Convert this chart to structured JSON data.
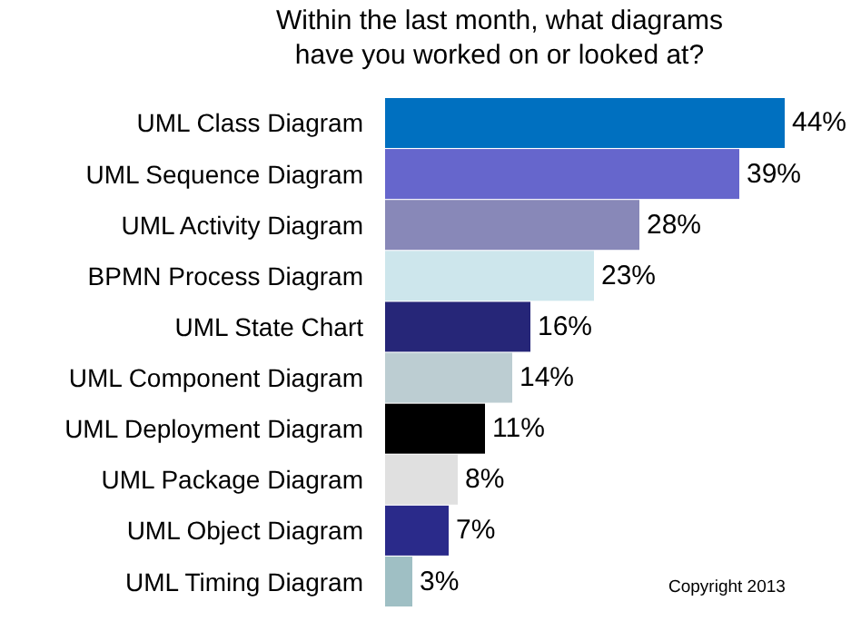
{
  "chart_data": {
    "type": "bar",
    "orientation": "horizontal",
    "title": "Within the last month, what diagrams have you worked on or looked at?",
    "categories": [
      "UML Class Diagram",
      "UML Sequence Diagram",
      "UML Activity Diagram",
      "BPMN Process Diagram",
      "UML State Chart",
      "UML Component Diagram",
      "UML Deployment Diagram",
      "UML Package Diagram",
      "UML Object Diagram",
      "UML Timing Diagram"
    ],
    "values": [
      44,
      39,
      28,
      23,
      16,
      14,
      11,
      8,
      7,
      3
    ],
    "colors": [
      "#0070c0",
      "#6666cc",
      "#8888b8",
      "#cde6ec",
      "#262678",
      "#bccdd2",
      "#000000",
      "#e0e0e0",
      "#2a2a8a",
      "#9fbfc4"
    ],
    "value_labels": [
      "44%",
      "39%",
      "28%",
      "23%",
      "16%",
      "14%",
      "11%",
      "8%",
      "7%",
      "3%"
    ],
    "annotations": [
      "Copyright 2013"
    ]
  }
}
